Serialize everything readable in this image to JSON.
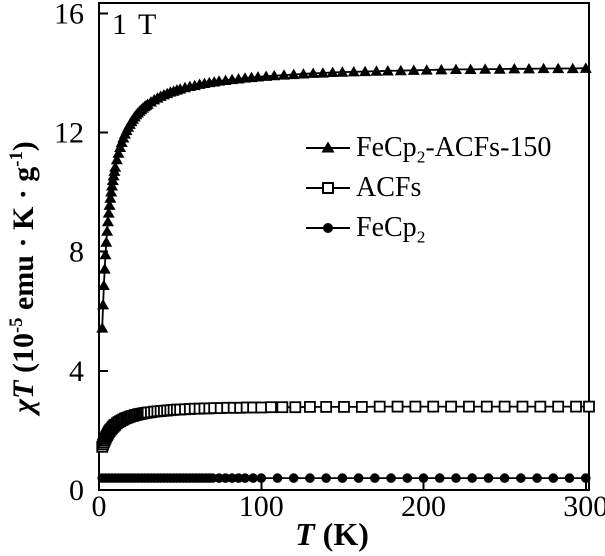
{
  "annotation": "1 T",
  "axes": {
    "ylabel": {
      "chi_t": "χT",
      "p1": " (10",
      "sup1": "-5",
      "p2": " emu · K · g",
      "sup2": "-1",
      "p3": ")"
    },
    "xlabel": {
      "t": "T",
      "rest": " (K)"
    }
  },
  "legend": {
    "items": [
      {
        "pre": "FeCp",
        "sub": "2",
        "post": "-ACFs-150"
      },
      {
        "pre": "ACFs",
        "sub": "",
        "post": ""
      },
      {
        "pre": "FeCp",
        "sub": "2",
        "post": ""
      }
    ]
  },
  "chart_data": {
    "type": "line",
    "title": "",
    "xlabel": "T (K)",
    "ylabel": "χT (10⁻⁵ emu · K · g⁻¹)",
    "annotation": "1 T (applied field)",
    "xlim": [
      0,
      302
    ],
    "ylim": [
      0,
      16.35
    ],
    "xticks": [
      0,
      100,
      200,
      300
    ],
    "yticks": [
      0,
      4,
      8,
      12,
      16
    ],
    "grid": false,
    "legend_position": "center-right",
    "axis_color": "#000000",
    "series": [
      {
        "name": "FeCp2-ACFs-150",
        "marker": "triangle-filled",
        "color": "#000000",
        "points": [
          [
            2,
            5.44
          ],
          [
            2.5,
            6.22
          ],
          [
            3,
            6.87
          ],
          [
            3.5,
            7.42
          ],
          [
            4,
            7.9
          ],
          [
            4.5,
            8.32
          ],
          [
            5,
            8.69
          ],
          [
            5.5,
            9.01
          ],
          [
            6,
            9.3
          ],
          [
            6.5,
            9.56
          ],
          [
            7,
            9.8
          ],
          [
            7.5,
            10.01
          ],
          [
            8,
            10.21
          ],
          [
            8.5,
            10.39
          ],
          [
            9,
            10.55
          ],
          [
            9.5,
            10.7
          ],
          [
            10,
            10.84
          ],
          [
            11,
            11.09
          ],
          [
            12,
            11.31
          ],
          [
            13,
            11.5
          ],
          [
            14,
            11.67
          ],
          [
            15,
            11.82
          ],
          [
            16,
            11.95
          ],
          [
            17,
            12.07
          ],
          [
            18,
            12.18
          ],
          [
            19,
            12.28
          ],
          [
            20,
            12.37
          ],
          [
            21,
            12.45
          ],
          [
            22,
            12.53
          ],
          [
            23,
            12.6
          ],
          [
            24,
            12.66
          ],
          [
            25,
            12.72
          ],
          [
            26,
            12.77
          ],
          [
            27,
            12.82
          ],
          [
            28,
            12.87
          ],
          [
            29,
            12.91
          ],
          [
            30,
            12.95
          ],
          [
            32,
            13.03
          ],
          [
            34,
            13.1
          ],
          [
            36,
            13.16
          ],
          [
            38,
            13.22
          ],
          [
            40,
            13.27
          ],
          [
            42,
            13.31
          ],
          [
            44,
            13.36
          ],
          [
            46,
            13.39
          ],
          [
            48,
            13.43
          ],
          [
            50,
            13.46
          ],
          [
            53,
            13.51
          ],
          [
            56,
            13.55
          ],
          [
            59,
            13.58
          ],
          [
            62,
            13.62
          ],
          [
            65,
            13.65
          ],
          [
            68,
            13.68
          ],
          [
            71,
            13.7
          ],
          [
            74,
            13.73
          ],
          [
            78,
            13.75
          ],
          [
            82,
            13.78
          ],
          [
            86,
            13.8
          ],
          [
            90,
            13.83
          ],
          [
            94,
            13.85
          ],
          [
            98,
            13.87
          ],
          [
            103,
            13.89
          ],
          [
            108,
            13.91
          ],
          [
            114,
            13.93
          ],
          [
            120,
            13.95
          ],
          [
            126,
            13.97
          ],
          [
            132,
            13.99
          ],
          [
            138,
            14.0
          ],
          [
            144,
            14.02
          ],
          [
            150,
            14.03
          ],
          [
            157,
            14.04
          ],
          [
            164,
            14.05
          ],
          [
            171,
            14.06
          ],
          [
            178,
            14.07
          ],
          [
            186,
            14.08
          ],
          [
            194,
            14.09
          ],
          [
            202,
            14.1
          ],
          [
            211,
            14.11
          ],
          [
            220,
            14.12
          ],
          [
            229,
            14.12
          ],
          [
            238,
            14.13
          ],
          [
            247,
            14.13
          ],
          [
            256,
            14.14
          ],
          [
            265,
            14.14
          ],
          [
            274,
            14.15
          ],
          [
            283,
            14.15
          ],
          [
            292,
            14.15
          ],
          [
            300,
            14.16
          ]
        ]
      },
      {
        "name": "ACFs",
        "marker": "square-open",
        "color": "#000000",
        "points": [
          [
            2,
            1.45
          ],
          [
            2.5,
            1.53
          ],
          [
            3,
            1.6
          ],
          [
            3.5,
            1.67
          ],
          [
            4,
            1.73
          ],
          [
            4.5,
            1.79
          ],
          [
            5,
            1.84
          ],
          [
            5.5,
            1.89
          ],
          [
            6,
            1.94
          ],
          [
            6.5,
            1.98
          ],
          [
            7,
            2.02
          ],
          [
            7.5,
            2.05
          ],
          [
            8,
            2.08
          ],
          [
            8.5,
            2.11
          ],
          [
            9,
            2.14
          ],
          [
            9.5,
            2.17
          ],
          [
            10,
            2.19
          ],
          [
            11,
            2.24
          ],
          [
            12,
            2.28
          ],
          [
            13,
            2.31
          ],
          [
            14,
            2.34
          ],
          [
            15,
            2.37
          ],
          [
            16,
            2.4
          ],
          [
            17,
            2.42
          ],
          [
            18,
            2.44
          ],
          [
            19,
            2.46
          ],
          [
            20,
            2.48
          ],
          [
            21,
            2.49
          ],
          [
            22,
            2.51
          ],
          [
            23,
            2.52
          ],
          [
            24,
            2.54
          ],
          [
            25,
            2.55
          ],
          [
            26,
            2.56
          ],
          [
            27,
            2.57
          ],
          [
            28,
            2.58
          ],
          [
            29,
            2.59
          ],
          [
            30,
            2.6
          ],
          [
            32,
            2.61
          ],
          [
            34,
            2.63
          ],
          [
            36,
            2.64
          ],
          [
            38,
            2.65
          ],
          [
            40,
            2.66
          ],
          [
            42,
            2.67
          ],
          [
            44,
            2.68
          ],
          [
            46,
            2.69
          ],
          [
            48,
            2.7
          ],
          [
            50,
            2.7
          ],
          [
            53,
            2.71
          ],
          [
            56,
            2.72
          ],
          [
            59,
            2.73
          ],
          [
            62,
            2.73
          ],
          [
            65,
            2.74
          ],
          [
            68,
            2.74
          ],
          [
            71,
            2.75
          ],
          [
            75,
            2.75
          ],
          [
            79,
            2.76
          ],
          [
            83,
            2.76
          ],
          [
            87,
            2.76
          ],
          [
            91,
            2.77
          ],
          [
            95,
            2.77
          ],
          [
            100,
            2.77
          ],
          [
            106,
            2.78
          ],
          [
            113,
            2.78
          ],
          [
            121,
            2.78
          ],
          [
            130,
            2.79
          ],
          [
            140,
            2.79
          ],
          [
            151,
            2.79
          ],
          [
            162,
            2.79
          ],
          [
            173,
            2.8
          ],
          [
            184,
            2.8
          ],
          [
            195,
            2.8
          ],
          [
            206,
            2.8
          ],
          [
            217,
            2.8
          ],
          [
            228,
            2.8
          ],
          [
            239,
            2.8
          ],
          [
            250,
            2.8
          ],
          [
            261,
            2.8
          ],
          [
            272,
            2.8
          ],
          [
            283,
            2.8
          ],
          [
            294,
            2.8
          ],
          [
            302,
            2.8
          ]
        ]
      },
      {
        "name": "FeCp2",
        "marker": "circle-filled",
        "color": "#000000",
        "points": [
          [
            2,
            0.4
          ],
          [
            4,
            0.4
          ],
          [
            6,
            0.4
          ],
          [
            8,
            0.4
          ],
          [
            10,
            0.4
          ],
          [
            12,
            0.4
          ],
          [
            14,
            0.4
          ],
          [
            16,
            0.4
          ],
          [
            18,
            0.4
          ],
          [
            20,
            0.4
          ],
          [
            22,
            0.4
          ],
          [
            24,
            0.4
          ],
          [
            26,
            0.4
          ],
          [
            28,
            0.4
          ],
          [
            30,
            0.4
          ],
          [
            32,
            0.4
          ],
          [
            34,
            0.4
          ],
          [
            36,
            0.4
          ],
          [
            38,
            0.4
          ],
          [
            40,
            0.4
          ],
          [
            42,
            0.4
          ],
          [
            44,
            0.4
          ],
          [
            46,
            0.4
          ],
          [
            48,
            0.4
          ],
          [
            50,
            0.4
          ],
          [
            52,
            0.4
          ],
          [
            54,
            0.4
          ],
          [
            56,
            0.4
          ],
          [
            58,
            0.4
          ],
          [
            60,
            0.4
          ],
          [
            62,
            0.4
          ],
          [
            64,
            0.4
          ],
          [
            66,
            0.4
          ],
          [
            68,
            0.4
          ],
          [
            70,
            0.4
          ],
          [
            74,
            0.4
          ],
          [
            78,
            0.4
          ],
          [
            82,
            0.4
          ],
          [
            86,
            0.4
          ],
          [
            90,
            0.4
          ],
          [
            95,
            0.4
          ],
          [
            100,
            0.4
          ],
          [
            110,
            0.4
          ],
          [
            120,
            0.4
          ],
          [
            130,
            0.4
          ],
          [
            140,
            0.4
          ],
          [
            150,
            0.4
          ],
          [
            160,
            0.4
          ],
          [
            170,
            0.4
          ],
          [
            180,
            0.4
          ],
          [
            190,
            0.4
          ],
          [
            200,
            0.4
          ],
          [
            210,
            0.4
          ],
          [
            220,
            0.4
          ],
          [
            230,
            0.4
          ],
          [
            240,
            0.4
          ],
          [
            250,
            0.4
          ],
          [
            260,
            0.4
          ],
          [
            270,
            0.4
          ],
          [
            280,
            0.4
          ],
          [
            290,
            0.4
          ],
          [
            300,
            0.4
          ]
        ]
      }
    ]
  }
}
